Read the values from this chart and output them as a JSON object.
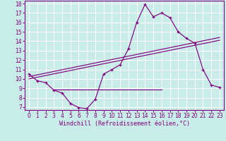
{
  "xlabel": "Windchill (Refroidissement éolien,°C)",
  "bg_color": "#c8ece8",
  "line_color": "#800080",
  "grid_color": "#ffffff",
  "xlim": [
    -0.5,
    23.5
  ],
  "ylim": [
    6.7,
    18.3
  ],
  "xticks": [
    0,
    1,
    2,
    3,
    4,
    5,
    6,
    7,
    8,
    9,
    10,
    11,
    12,
    13,
    14,
    15,
    16,
    17,
    18,
    19,
    20,
    21,
    22,
    23
  ],
  "yticks": [
    7,
    8,
    9,
    10,
    11,
    12,
    13,
    14,
    15,
    16,
    17,
    18
  ],
  "curve1_x": [
    0,
    1,
    2,
    3,
    4,
    5,
    6,
    7,
    8,
    9,
    10,
    11,
    12,
    13,
    14,
    15,
    16,
    17,
    18,
    19,
    20,
    21,
    22,
    23
  ],
  "curve1_y": [
    10.5,
    9.8,
    9.6,
    8.8,
    8.5,
    7.4,
    6.95,
    6.85,
    7.85,
    10.5,
    11.0,
    11.5,
    13.2,
    16.0,
    17.9,
    16.6,
    17.0,
    16.5,
    15.0,
    14.3,
    13.8,
    11.0,
    9.35,
    9.1
  ],
  "line2_x": [
    3.0,
    16.0
  ],
  "line2_y": [
    8.85,
    8.85
  ],
  "line3_x": [
    0,
    23
  ],
  "line3_y": [
    10.0,
    14.1
  ],
  "line4_x": [
    0,
    23
  ],
  "line4_y": [
    10.25,
    14.4
  ],
  "xlabel_fontsize": 6,
  "tick_fontsize": 5.5
}
